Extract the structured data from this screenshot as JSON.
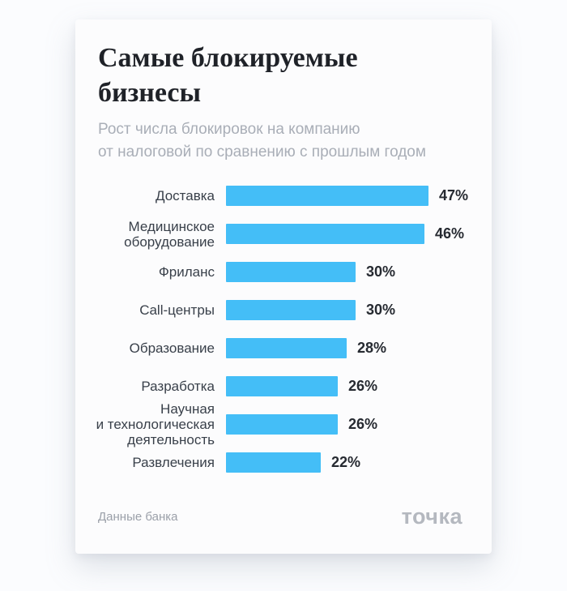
{
  "page": {
    "background_color": "#FBFCFE",
    "card_color": "#FCFCFD"
  },
  "card": {
    "title": "Самые блокируемые бизнесы",
    "title_lines": [
      "Самые блокируемые",
      "бизнесы"
    ],
    "subtitle_lines": [
      "Рост числа блокировок на компанию",
      "от налоговой по сравнению с прошлым годом"
    ]
  },
  "chart_data": {
    "type": "bar",
    "orientation": "horizontal",
    "title": "Самые блокируемые бизнесы",
    "subtitle": "Рост числа блокировок на компанию от налоговой по сравнению с прошлым годом",
    "categories": [
      "Доставка",
      "Медицинское оборудование",
      "Фриланс",
      "Call-центры",
      "Образование",
      "Разработка",
      "Научная и технологическая деятельность",
      "Развлечения"
    ],
    "values": [
      47,
      46,
      30,
      30,
      28,
      26,
      26,
      22
    ],
    "value_labels": [
      "47%",
      "46%",
      "30%",
      "30%",
      "28%",
      "26%",
      "26%",
      "22%"
    ],
    "label_lines": [
      [
        "Доставка"
      ],
      [
        "Медицинское",
        "оборудование"
      ],
      [
        "Фриланс"
      ],
      [
        "Call-центры"
      ],
      [
        "Образование"
      ],
      [
        "Разработка"
      ],
      [
        "Научная",
        "и технологическая",
        "деятельность"
      ],
      [
        "Развлечения"
      ]
    ],
    "unit": "%",
    "xlim": [
      0,
      47
    ],
    "bar_color": "#44BEF7",
    "grid": false,
    "legend": false
  },
  "footer": {
    "source": "Данные банка",
    "logo": "точка"
  },
  "colors": {
    "title": "#1F2228",
    "subtitle": "#A9AEB7",
    "bar_label": "#39404A",
    "bar_value": "#262A31",
    "bar": "#44BEF7",
    "source": "#9BA0A9",
    "logo": "#B4B8BF"
  }
}
